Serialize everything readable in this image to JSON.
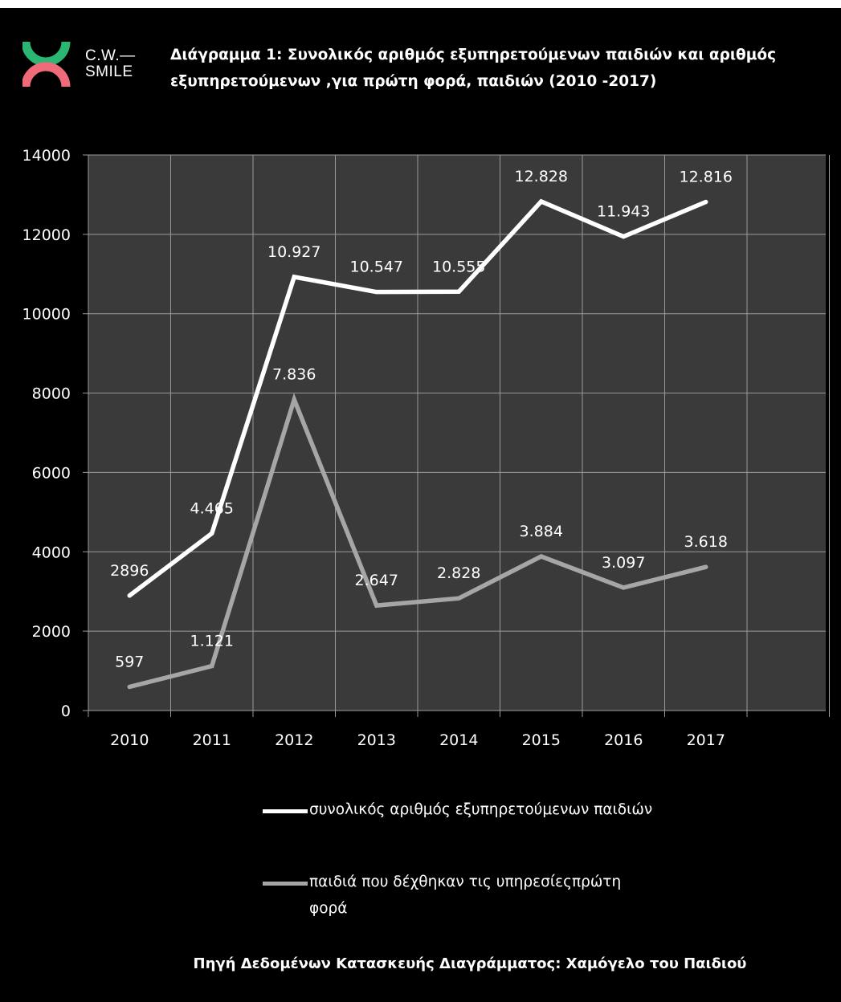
{
  "header": {
    "logo_text_line1": "C.W.—",
    "logo_text_line2": "SMILE",
    "title": "Διάγραμμα 1: Συνολικός αριθμός εξυπηρετούμενων παιδιών και αριθμός εξυπηρετούμενων ,για πρώτη φορά, παιδιών (2010 -2017)"
  },
  "colors": {
    "background": "#000000",
    "plot_area": "#3a3a3a",
    "gridline": "#9a9a9a",
    "logo_green": "#2bb673",
    "logo_pink": "#f06b7a",
    "series_total": "#ffffff",
    "series_first": "#a6a6a6"
  },
  "chart_data": {
    "type": "line",
    "categories": [
      "2010",
      "2011",
      "2012",
      "2013",
      "2014",
      "2015",
      "2016",
      "2017"
    ],
    "ylim": [
      0,
      14000
    ],
    "yticks": [
      "0",
      "2000",
      "4000",
      "6000",
      "8000",
      "10000",
      "12000",
      "14000"
    ],
    "grid": true,
    "legend_position": "bottom",
    "series": [
      {
        "name": "συνολικός αριθμός εξυπηρετούμενων παιδιών",
        "values": [
          2896,
          4465,
          10927,
          10547,
          10555,
          12828,
          11943,
          12816
        ],
        "labels": [
          "2896",
          "4.465",
          "10.927",
          "10.547",
          "10.555",
          "12.828",
          "11.943",
          "12.816"
        ],
        "color": "#ffffff"
      },
      {
        "name": "παιδιά που δέχθηκαν τις υπηρεσίεςπρώτη φορά",
        "values": [
          597,
          1121,
          7836,
          2647,
          2828,
          3884,
          3097,
          3618
        ],
        "labels": [
          "597",
          "1.121",
          "7.836",
          "2.647",
          "2.828",
          "3.884",
          "3.097",
          "3.618"
        ],
        "color": "#a6a6a6"
      }
    ]
  },
  "footer": {
    "source": "Πηγή Δεδομένων Κατασκευής Διαγράμματος: Χαμόγελο του Παιδιού"
  }
}
